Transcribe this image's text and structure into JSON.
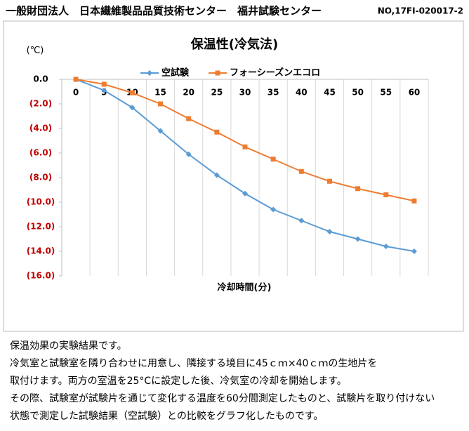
{
  "header": {
    "title": "一般財団法人　日本繊維製品品質技術センター　福井試験センター",
    "number": "NO,17FI-020017-2"
  },
  "chart_data": {
    "type": "line",
    "title": "保温性(冷気法)",
    "y_unit": "(℃)",
    "x_label": "冷却時間(分)",
    "categories": [
      "0",
      "5",
      "10",
      "15",
      "20",
      "25",
      "30",
      "35",
      "40",
      "45",
      "50",
      "55",
      "60"
    ],
    "series": [
      {
        "name": "空試験",
        "color": "#5b9bd5",
        "marker": "diamond",
        "values": [
          0,
          -0.9,
          -2.3,
          -4.2,
          -6.1,
          -7.8,
          -9.3,
          -10.6,
          -11.5,
          -12.4,
          -13.0,
          -13.6,
          -14.0
        ]
      },
      {
        "name": "フォーシーズンエコロ",
        "color": "#ed7d31",
        "marker": "square",
        "values": [
          0,
          -0.4,
          -1.1,
          -2.0,
          -3.2,
          -4.3,
          -5.5,
          -6.5,
          -7.5,
          -8.3,
          -8.9,
          -9.4,
          -9.9
        ]
      }
    ],
    "ylim": [
      -16,
      0
    ],
    "yticks": [
      {
        "value": 0,
        "label": "0.0"
      },
      {
        "value": -2,
        "label": "(2.0)"
      },
      {
        "value": -4,
        "label": "(4.0)"
      },
      {
        "value": -6,
        "label": "(6.0)"
      },
      {
        "value": -8,
        "label": "(8.0)"
      },
      {
        "value": -10,
        "label": "(10.0)"
      },
      {
        "value": -12,
        "label": "(12.0)"
      },
      {
        "value": -14,
        "label": "(14.0)"
      },
      {
        "value": -16,
        "label": "(16.0)"
      }
    ],
    "negative_color": "#c00000",
    "grid": "x",
    "legend": "top"
  },
  "body": [
    "保温効果の実験結果です。",
    "冷気室と試験室を隣り合わせに用意し、隣接する境目に45ｃｍ×40ｃｍの生地片を",
    "取付けます。両方の室温を25°Cに設定した後、冷気室の冷却を開始します。",
    "その際、試験室が試験片を通じて変化する温度を60分間測定したものと、試験片を取り付けない",
    "状態で測定した試験結果（空試験）との比較をグラフ化したものです。"
  ]
}
